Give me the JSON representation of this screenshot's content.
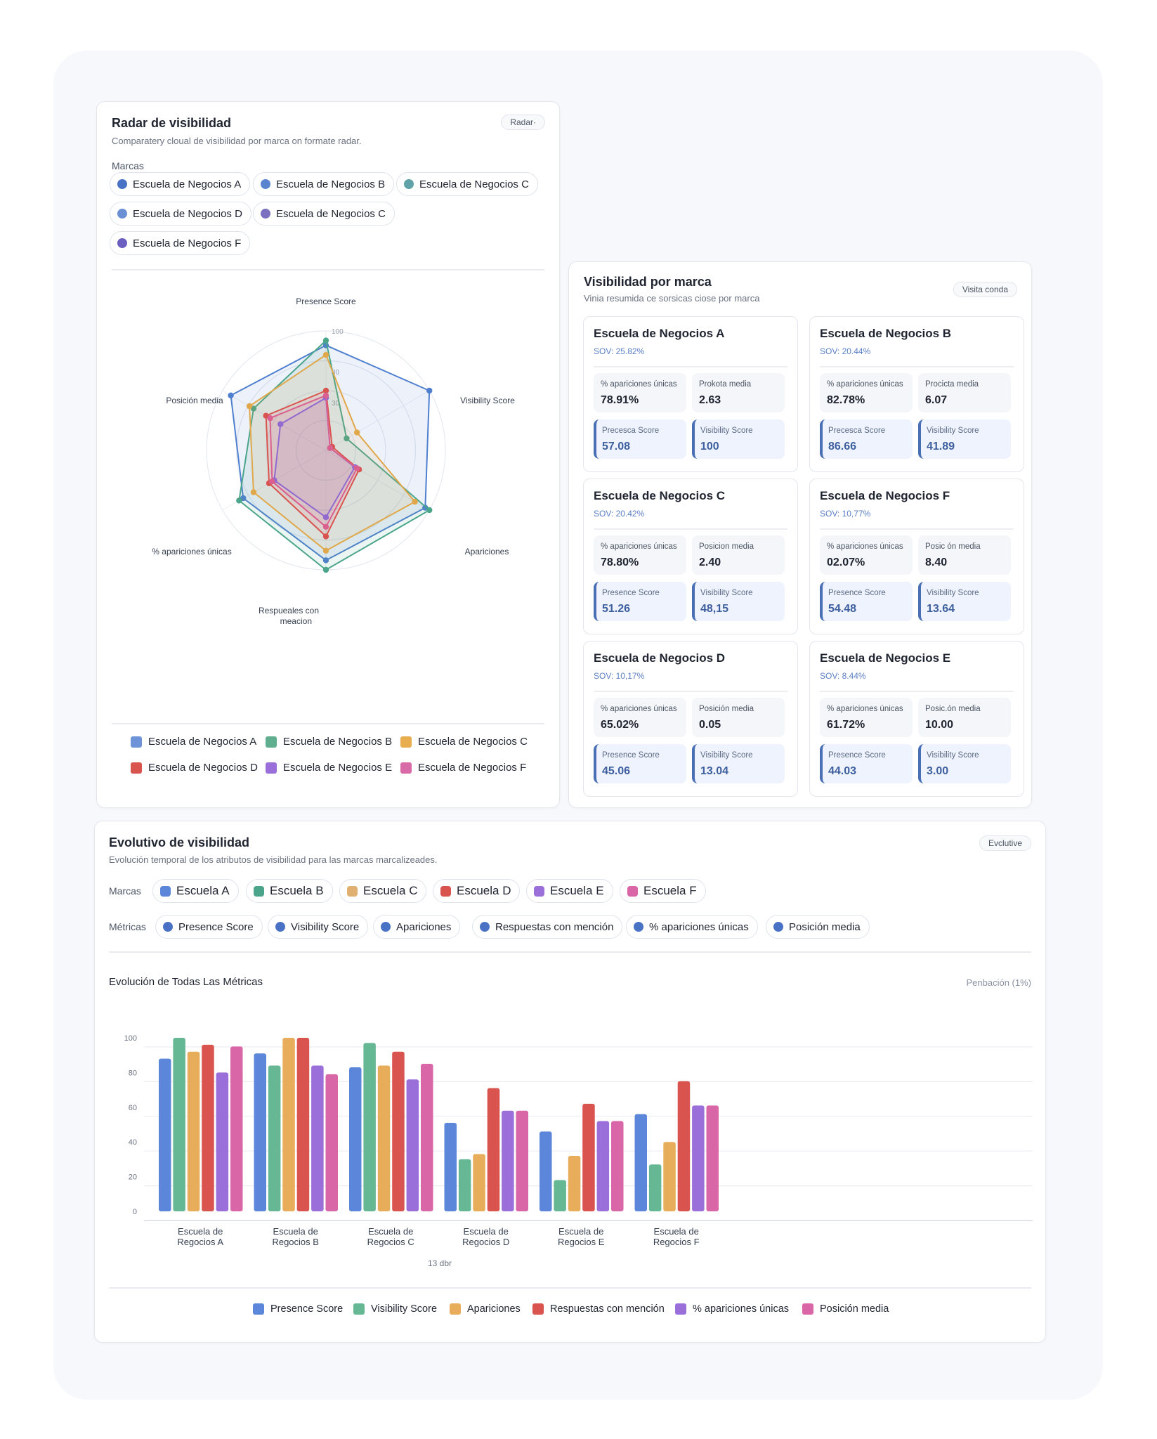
{
  "radar_card": {
    "title": "Radar de visibilidad",
    "subtitle": "Comparatery cloual de visibilidad por marca on formate radar.",
    "button": "Radar·",
    "brands_label": "Marcas",
    "brand_chips": [
      {
        "label": "Escuela de Negocios A",
        "color": "#4a72c4"
      },
      {
        "label": "Escuela de Negocios B",
        "color": "#5b84cf"
      },
      {
        "label": "Escuela de Negocios C",
        "color": "#5fa3a8"
      },
      {
        "label": "Escuela de Negocios D",
        "color": "#6b8fd3"
      },
      {
        "label": "Escuela de Negocios C",
        "color": "#7b6fc0"
      },
      {
        "label": "Escuela de Negocios F",
        "color": "#6a5fc0"
      }
    ],
    "legend": [
      {
        "label": "Escuela de Negocios A",
        "color": "#6f93d8"
      },
      {
        "label": "Escuela de Negocios B",
        "color": "#5fae8f"
      },
      {
        "label": "Escuela de Negocios C",
        "color": "#e8ad4f"
      },
      {
        "label": "Escuela de Negocios D",
        "color": "#d9534f"
      },
      {
        "label": "Escuela de Negocios E",
        "color": "#9b6fd9"
      },
      {
        "label": "Escuela de Negocios F",
        "color": "#d96aa8"
      }
    ]
  },
  "chart_data": [
    {
      "type": "radar",
      "title": "",
      "axes": [
        "Presence Score",
        "Visibility Score",
        "Apariciones",
        "Respueales con meacion",
        "% apariciones únicas",
        "Posición media"
      ],
      "tick_labels": [
        "100",
        "30",
        "30"
      ],
      "range": [
        0,
        100
      ],
      "series": [
        {
          "name": "Escuela de Negocios A",
          "color": "#4f7fcf",
          "values": [
            88,
            100,
            96,
            92,
            80,
            92
          ]
        },
        {
          "name": "Escuela de Negocios B",
          "color": "#4aa58a",
          "values": [
            92,
            20,
            100,
            100,
            84,
            70
          ]
        },
        {
          "name": "Escuela de Negocios C",
          "color": "#e0a84a",
          "values": [
            80,
            30,
            86,
            84,
            70,
            74
          ]
        },
        {
          "name": "Escuela de Negocios D",
          "color": "#d9534f",
          "values": [
            50,
            6,
            32,
            72,
            55,
            58
          ]
        },
        {
          "name": "Escuela de Negocios E",
          "color": "#8a6ad6",
          "values": [
            44,
            4,
            28,
            56,
            50,
            44
          ]
        },
        {
          "name": "Escuela de Negocios F",
          "color": "#d9608f",
          "values": [
            46,
            4,
            30,
            64,
            52,
            54
          ]
        }
      ]
    },
    {
      "type": "bar",
      "title": "Evolución de Todas Las Métricas",
      "xlabel": "13 dbr",
      "ylabel": "",
      "ylim": [
        0,
        100
      ],
      "yticks": [
        0,
        20,
        40,
        60,
        80,
        100
      ],
      "categories": [
        "Escuela de Regocios A",
        "Escuela de Regocios B",
        "Escuela de Regocios C",
        "Escuela de Regocios D",
        "Escuela de Regocios E",
        "Escuela de Regocios F"
      ],
      "series": [
        {
          "name": "Presence Score",
          "color": "#5b86d9",
          "values": [
            88,
            91,
            83,
            51,
            46,
            56
          ]
        },
        {
          "name": "Visibility Score",
          "color": "#66b894",
          "values": [
            100,
            84,
            97,
            30,
            18,
            27
          ]
        },
        {
          "name": "Apariciones",
          "color": "#e8ad5a",
          "values": [
            92,
            100,
            84,
            33,
            32,
            40
          ]
        },
        {
          "name": "Respuestas con mención",
          "color": "#d9534f",
          "values": [
            96,
            100,
            92,
            71,
            62,
            75
          ]
        },
        {
          "name": "% apariciones únicas",
          "color": "#9b6fd9",
          "values": [
            80,
            84,
            76,
            58,
            52,
            61
          ]
        },
        {
          "name": "Posición media",
          "color": "#d966a6",
          "values": [
            95,
            79,
            85,
            58,
            52,
            61
          ]
        }
      ]
    }
  ],
  "visibility_card": {
    "title": "Visibilidad por marca",
    "subtitle": "Vinia resumida ce sorsicas ciose por marca",
    "button": "Visita conda",
    "brands": [
      {
        "name": "Escuela de Negocios A",
        "sov": "SOV: 25.82%",
        "m1_label": "% apariciones únicas",
        "m1_value": "78.91%",
        "m2_label": "Prokota media",
        "m2_value": "2.63",
        "m3_label": "Precesca Score",
        "m3_value": "57.08",
        "m4_label": "Visibility Score",
        "m4_value": "100"
      },
      {
        "name": "Escuela de Negocios B",
        "sov": "SOV: 20.44%",
        "m1_label": "% apariciones únicas",
        "m1_value": "82.78%",
        "m2_label": "Procicta media",
        "m2_value": "6.07",
        "m3_label": "Precesca Score",
        "m3_value": "86.66",
        "m4_label": "Visibility Score",
        "m4_value": "41.89"
      },
      {
        "name": "Escuela de Negocios C",
        "sov": "SOV: 20.42%",
        "m1_label": "% apariciones únicas",
        "m1_value": "78.80%",
        "m2_label": "Posicion media",
        "m2_value": "2.40",
        "m3_label": "Presence Score",
        "m3_value": "51.26",
        "m4_label": "Visibility Score",
        "m4_value": "48,15"
      },
      {
        "name": "Escuela de Negocios F",
        "sov": "SOV: 10,77%",
        "m1_label": "% apariciones únicas",
        "m1_value": "02.07%",
        "m2_label": "Posic ón media",
        "m2_value": "8.40",
        "m3_label": "Presence Score",
        "m3_value": "54.48",
        "m4_label": "Visibility Score",
        "m4_value": "13.64"
      },
      {
        "name": "Escuela de Negocios D",
        "sov": "SOV: 10,17%",
        "m1_label": "% apariciones únicas",
        "m1_value": "65.02%",
        "m2_label": "Posición media",
        "m2_value": "0.05",
        "m3_label": "Presence Score",
        "m3_value": "45.06",
        "m4_label": "Visibility Score",
        "m4_value": "13.04"
      },
      {
        "name": "Escuela de Negocios E",
        "sov": "SOV: 8.44%",
        "m1_label": "% apariciones únicas",
        "m1_value": "61.72%",
        "m2_label": "Posic.ón media",
        "m2_value": "10.00",
        "m3_label": "Presence Score",
        "m3_value": "44.03",
        "m4_label": "Visibility Score",
        "m4_value": "3.00"
      }
    ]
  },
  "evolutivo_card": {
    "title": "Evolutivo de visibilidad",
    "subtitle": "Evolución temporal de los atributos de visibilidad para las marcas marcalizeades.",
    "button": "Evclutive",
    "brands_label": "Marcas",
    "brand_chips": [
      {
        "label": "Escuela A",
        "color": "#5b86d9"
      },
      {
        "label": "Escuela B",
        "color": "#4aa58a"
      },
      {
        "label": "Escuela C",
        "color": "#e0b070"
      },
      {
        "label": "Escuela D",
        "color": "#d9534f"
      },
      {
        "label": "Escuela E",
        "color": "#9b6fd9"
      },
      {
        "label": "Escuela F",
        "color": "#d966a6"
      }
    ],
    "metrics_label": "Métricas",
    "metric_chips": [
      {
        "label": "Presence Score",
        "color": "#4a72c4"
      },
      {
        "label": "Visibility Score",
        "color": "#4a72c4"
      },
      {
        "label": "Apariciones",
        "color": "#4a72c4"
      },
      {
        "label": "Respuestas con mención",
        "color": "#4a72c4"
      },
      {
        "label": "% apariciones únicas",
        "color": "#4a72c4"
      },
      {
        "label": "Posición media",
        "color": "#4a72c4"
      }
    ],
    "chart_title": "Evolución de Todas Las Métricas",
    "chart_corner": "Penbación (1%)"
  }
}
